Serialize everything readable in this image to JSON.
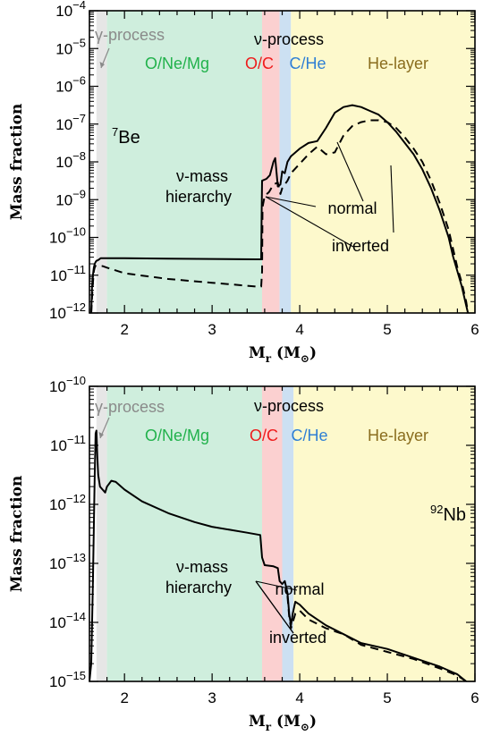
{
  "chart_data": [
    {
      "type": "line",
      "panel": "top",
      "isotope": {
        "mass_number": "7",
        "symbol": "Be"
      },
      "xlabel": {
        "main": "M",
        "sub": "r",
        "unit_open": " (M",
        "unit_close": ")"
      },
      "ylabel": "Mass fraction",
      "xlim": [
        1.6,
        6.0
      ],
      "ylim_log10": [
        -12,
        -4
      ],
      "xticks": [
        2,
        3,
        4,
        5,
        6
      ],
      "yticks_exp": [
        -12,
        -11,
        -10,
        -9,
        -8,
        -7,
        -6,
        -5,
        -4
      ],
      "regions": [
        {
          "name": "γ-process",
          "x": [
            1.68,
            1.8
          ],
          "color": "#e6e6e6",
          "label_color": "#8a8a8a"
        },
        {
          "name": "O/Ne/Mg",
          "x": [
            1.8,
            3.57
          ],
          "color": "#cfeedd",
          "label_color": "#22b24c"
        },
        {
          "name": "O/C",
          "x": [
            3.57,
            3.77
          ],
          "color": "#fbd0d0",
          "label_color": "#ee1c1c"
        },
        {
          "name": "C/He",
          "x": [
            3.77,
            3.9
          ],
          "color": "#cce0f2",
          "label_color": "#2f7fd4"
        },
        {
          "name": "He-layer",
          "x": [
            3.9,
            6.0
          ],
          "color": "#fdf9cc",
          "label_color": "#8a6d1e"
        }
      ],
      "nu_process_label": "ν-process",
      "annotations": [
        "ν-mass",
        "hierarchy",
        "normal",
        "inverted"
      ],
      "series": [
        {
          "name": "normal",
          "style": "solid",
          "x": [
            1.62,
            1.63,
            1.64,
            1.65,
            1.66,
            1.67,
            1.68,
            1.7,
            1.73,
            1.76,
            1.8,
            2.0,
            2.5,
            3.0,
            3.5,
            3.56,
            3.565,
            3.57,
            3.62,
            3.66,
            3.7,
            3.72,
            3.75,
            3.78,
            3.8,
            3.83,
            3.86,
            3.9,
            4.0,
            4.1,
            4.2,
            4.3,
            4.4,
            4.5,
            4.6,
            4.7,
            4.8,
            4.9,
            5.0,
            5.1,
            5.2,
            5.3,
            5.4,
            5.5,
            5.6,
            5.7,
            5.75,
            5.8,
            5.85,
            5.9,
            5.92
          ],
          "log10y": [
            -12.0,
            -11.3,
            -11.0,
            -10.8,
            -10.7,
            -10.65,
            -10.62,
            -10.6,
            -10.55,
            -10.55,
            -10.55,
            -10.55,
            -10.56,
            -10.57,
            -10.58,
            -10.58,
            -9.4,
            -8.5,
            -8.45,
            -8.35,
            -8.0,
            -7.9,
            -8.65,
            -8.6,
            -8.25,
            -8.3,
            -8.0,
            -7.85,
            -7.65,
            -7.5,
            -7.45,
            -7.1,
            -6.7,
            -6.55,
            -6.5,
            -6.55,
            -6.65,
            -6.75,
            -6.95,
            -7.2,
            -7.5,
            -7.8,
            -8.2,
            -8.7,
            -9.3,
            -10.0,
            -10.5,
            -10.9,
            -11.3,
            -11.8,
            -12.0
          ]
        },
        {
          "name": "inverted",
          "style": "dashed",
          "x": [
            1.62,
            1.63,
            1.64,
            1.65,
            1.66,
            1.67,
            1.68,
            1.7,
            1.75,
            1.8,
            2.0,
            2.5,
            3.0,
            3.5,
            3.56,
            3.57,
            3.575,
            3.6,
            3.65,
            3.7,
            3.75,
            3.78,
            3.8,
            3.83,
            3.86,
            3.9,
            4.0,
            4.1,
            4.2,
            4.3,
            4.4,
            4.5,
            4.6,
            4.7,
            4.8,
            4.9,
            5.0,
            5.1,
            5.2,
            5.3,
            5.4,
            5.5,
            5.6,
            5.7,
            5.75,
            5.8,
            5.85,
            5.9,
            5.92
          ],
          "log10y": [
            -12.0,
            -11.6,
            -11.2,
            -10.9,
            -10.8,
            -10.75,
            -10.75,
            -10.75,
            -10.76,
            -10.8,
            -10.95,
            -11.1,
            -11.2,
            -11.3,
            -11.3,
            -10.9,
            -9.2,
            -8.9,
            -8.8,
            -8.6,
            -8.55,
            -8.85,
            -8.7,
            -8.6,
            -8.5,
            -8.3,
            -8.05,
            -7.8,
            -7.6,
            -7.8,
            -7.75,
            -7.3,
            -7.05,
            -6.95,
            -6.9,
            -6.9,
            -6.95,
            -7.1,
            -7.35,
            -7.65,
            -8.0,
            -8.5,
            -9.1,
            -9.8,
            -10.3,
            -10.8,
            -11.2,
            -11.7,
            -12.0
          ]
        }
      ]
    },
    {
      "type": "line",
      "panel": "bottom",
      "isotope": {
        "mass_number": "92",
        "symbol": "Nb"
      },
      "xlabel": {
        "main": "M",
        "sub": "r",
        "unit_open": " (M",
        "unit_close": ")"
      },
      "ylabel": "Mass fraction",
      "xlim": [
        1.6,
        6.0
      ],
      "ylim_log10": [
        -15,
        -10
      ],
      "xticks": [
        2,
        3,
        4,
        5,
        6
      ],
      "yticks_exp": [
        -15,
        -14,
        -13,
        -12,
        -11,
        -10
      ],
      "regions": [
        {
          "name": "γ-process",
          "x": [
            1.68,
            1.8
          ],
          "color": "#e6e6e6",
          "label_color": "#8a8a8a"
        },
        {
          "name": "O/Ne/Mg",
          "x": [
            1.8,
            3.57
          ],
          "color": "#cfeedd",
          "label_color": "#22b24c"
        },
        {
          "name": "O/C",
          "x": [
            3.57,
            3.8
          ],
          "color": "#fbd0d0",
          "label_color": "#ee1c1c"
        },
        {
          "name": "C/He",
          "x": [
            3.8,
            3.93
          ],
          "color": "#cce0f2",
          "label_color": "#2f7fd4"
        },
        {
          "name": "He-layer",
          "x": [
            3.93,
            6.0
          ],
          "color": "#fdf9cc",
          "label_color": "#8a6d1e"
        }
      ],
      "nu_process_label": "ν-process",
      "annotations": [
        "ν-mass",
        "hierarchy",
        "normal",
        "inverted"
      ],
      "series": [
        {
          "name": "normal",
          "style": "solid",
          "x": [
            1.6,
            1.62,
            1.64,
            1.66,
            1.67,
            1.68,
            1.69,
            1.7,
            1.72,
            1.75,
            1.78,
            1.8,
            1.85,
            1.9,
            2.0,
            2.2,
            2.5,
            2.8,
            3.0,
            3.2,
            3.4,
            3.55,
            3.57,
            3.6,
            3.7,
            3.75,
            3.77,
            3.8,
            3.83,
            3.86,
            3.88,
            3.9,
            3.92,
            3.95,
            4.0,
            4.1,
            4.3,
            4.5,
            4.7,
            5.0,
            5.3,
            5.6,
            5.8,
            5.9
          ],
          "log10y": [
            -15.0,
            -14.7,
            -13.3,
            -11.5,
            -10.8,
            -10.75,
            -11.2,
            -11.5,
            -11.7,
            -11.75,
            -11.8,
            -11.7,
            -11.6,
            -11.62,
            -11.75,
            -11.95,
            -12.15,
            -12.3,
            -12.38,
            -12.43,
            -12.48,
            -12.52,
            -12.9,
            -13.03,
            -13.05,
            -13.08,
            -13.3,
            -13.35,
            -13.3,
            -13.5,
            -13.85,
            -14.05,
            -13.85,
            -13.65,
            -13.7,
            -13.85,
            -14.05,
            -14.2,
            -14.35,
            -14.45,
            -14.6,
            -14.75,
            -14.88,
            -15.0
          ]
        },
        {
          "name": "inverted",
          "style": "dashed",
          "x": [
            3.86,
            3.88,
            3.9,
            3.92,
            3.95,
            4.0,
            4.1,
            4.3,
            4.5,
            4.7,
            5.0,
            5.3,
            5.6,
            5.8,
            5.9
          ],
          "log10y": [
            -13.55,
            -13.9,
            -14.1,
            -14.0,
            -13.85,
            -13.8,
            -13.95,
            -14.1,
            -14.2,
            -14.38,
            -14.5,
            -14.62,
            -14.78,
            -14.9,
            -15.0
          ]
        }
      ]
    }
  ],
  "colors": {
    "line": "#000000",
    "frame": "#000000"
  }
}
